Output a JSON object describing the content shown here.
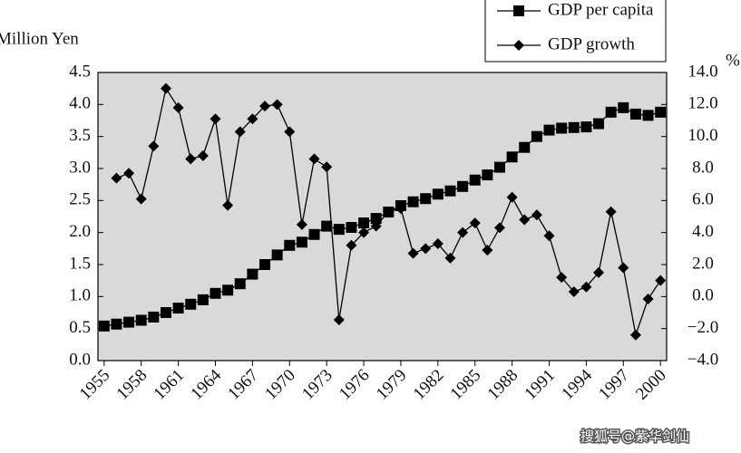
{
  "chart_data": {
    "type": "line",
    "x": [
      1955,
      1956,
      1957,
      1958,
      1959,
      1960,
      1961,
      1962,
      1963,
      1964,
      1965,
      1966,
      1967,
      1968,
      1969,
      1970,
      1971,
      1972,
      1973,
      1974,
      1975,
      1976,
      1977,
      1978,
      1979,
      1980,
      1981,
      1982,
      1983,
      1984,
      1985,
      1986,
      1987,
      1988,
      1989,
      1990,
      1991,
      1992,
      1993,
      1994,
      1995,
      1996,
      1997,
      1998,
      1999,
      2000
    ],
    "series": [
      {
        "name": "GDP per capita",
        "color": "#000000",
        "marker": "square",
        "values": [
          0.54,
          0.57,
          0.6,
          0.63,
          0.68,
          0.75,
          0.82,
          0.88,
          0.95,
          1.05,
          1.1,
          1.2,
          1.35,
          1.5,
          1.65,
          1.8,
          1.85,
          1.97,
          2.1,
          2.05,
          2.08,
          2.15,
          2.22,
          2.32,
          2.42,
          2.48,
          2.53,
          2.6,
          2.65,
          2.72,
          2.82,
          2.9,
          3.02,
          3.18,
          3.33,
          3.5,
          3.6,
          3.63,
          3.64,
          3.65,
          3.7,
          3.88,
          3.95,
          3.85,
          3.83,
          3.88
        ]
      },
      {
        "name": "GDP growth",
        "color": "#000000",
        "marker": "diamond",
        "axis": "y2",
        "values": [
          null,
          7.4,
          7.7,
          6.1,
          9.4,
          13.0,
          11.8,
          8.6,
          8.8,
          11.1,
          5.7,
          10.3,
          11.1,
          11.9,
          12.0,
          10.3,
          4.5,
          8.6,
          8.1,
          -1.45,
          3.2,
          4.0,
          4.4,
          5.3,
          5.5,
          2.7,
          3.0,
          3.3,
          2.4,
          4.0,
          4.6,
          2.9,
          4.3,
          6.2,
          4.8,
          5.1,
          3.8,
          1.2,
          0.3,
          0.6,
          1.5,
          5.3,
          1.8,
          -2.4,
          -0.15,
          1.0
        ]
      }
    ],
    "ylabel": "Million Yen",
    "y2label": "%",
    "xlim": [
      1954.5,
      2000.5
    ],
    "xticks": [
      1955,
      1958,
      1961,
      1964,
      1967,
      1970,
      1973,
      1976,
      1979,
      1982,
      1985,
      1988,
      1991,
      1994,
      1997,
      2000
    ],
    "ylim": [
      0,
      4.5
    ],
    "yticks": [
      {
        "value": 0,
        "label": "0.0"
      },
      0.5,
      {
        "value": 1,
        "label": "1.0"
      },
      1.5,
      {
        "value": 2,
        "label": "2.0"
      },
      2.5,
      {
        "value": 3,
        "label": "3.0"
      },
      3.5,
      {
        "value": 4,
        "label": "4.0"
      },
      4.5
    ],
    "y2lim": [
      -4,
      14
    ],
    "y2ticks": [
      {
        "value": -4,
        "label": "−4.0"
      },
      {
        "value": -2,
        "label": "−2.0"
      },
      {
        "value": 0,
        "label": "0.0"
      },
      {
        "value": 2,
        "label": "2.0"
      },
      {
        "value": 4,
        "label": "4.0"
      },
      {
        "value": 6,
        "label": "6.0"
      },
      {
        "value": 8,
        "label": "8.0"
      },
      {
        "value": 10,
        "label": "10.0"
      },
      {
        "value": 12,
        "label": "12.0"
      },
      {
        "value": 14,
        "label": "14.0"
      }
    ],
    "background": "#d9d9d9",
    "watermark": "搜狐号@紫华剑仙"
  }
}
